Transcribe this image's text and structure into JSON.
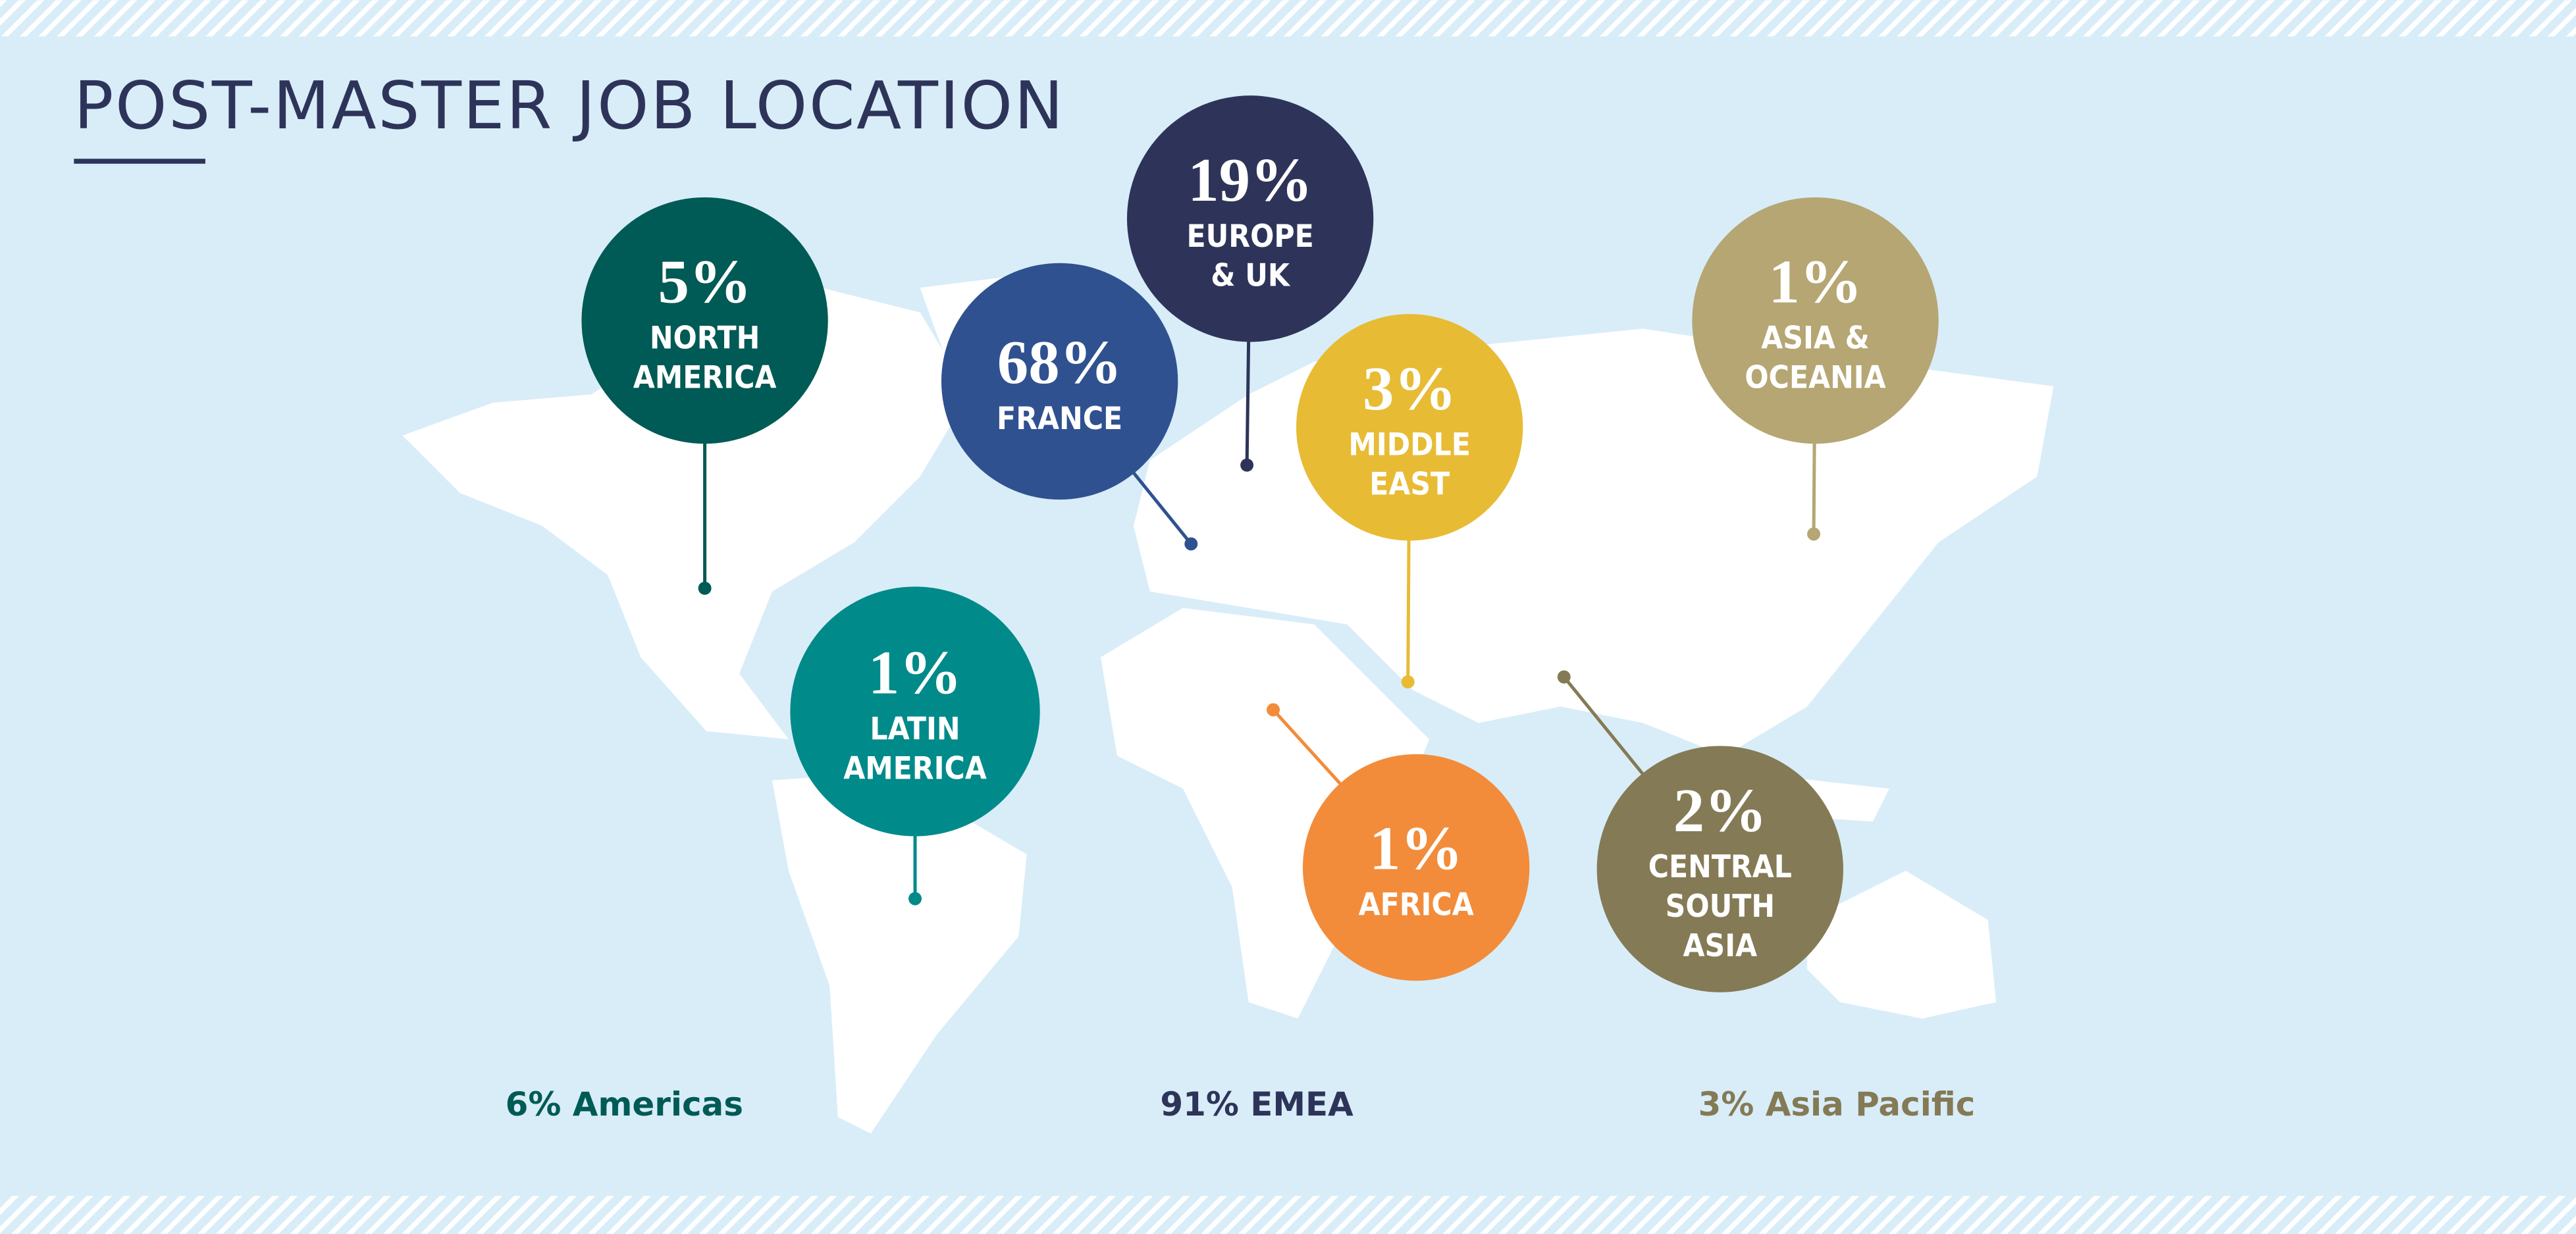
{
  "header": {
    "title": "POST-MASTER JOB LOCATION"
  },
  "regions": [
    {
      "percent": "5%",
      "label": [
        "NORTH",
        "AMERICA"
      ]
    },
    {
      "percent": "68%",
      "label": [
        "FRANCE"
      ]
    },
    {
      "percent": "19%",
      "label": [
        "EUROPE",
        "& UK"
      ]
    },
    {
      "percent": "3%",
      "label": [
        "MIDDLE",
        "EAST"
      ]
    },
    {
      "percent": "1%",
      "label": [
        "ASIA &",
        "OCEANIA"
      ]
    },
    {
      "percent": "1%",
      "label": [
        "LATIN",
        "AMERICA"
      ]
    },
    {
      "percent": "1%",
      "label": [
        "AFRICA"
      ]
    },
    {
      "percent": "2%",
      "label": [
        "CENTRAL",
        "SOUTH",
        "ASIA"
      ]
    }
  ],
  "summary": [
    "6% Americas",
    "91% EMEA",
    "3% Asia Pacific"
  ]
}
